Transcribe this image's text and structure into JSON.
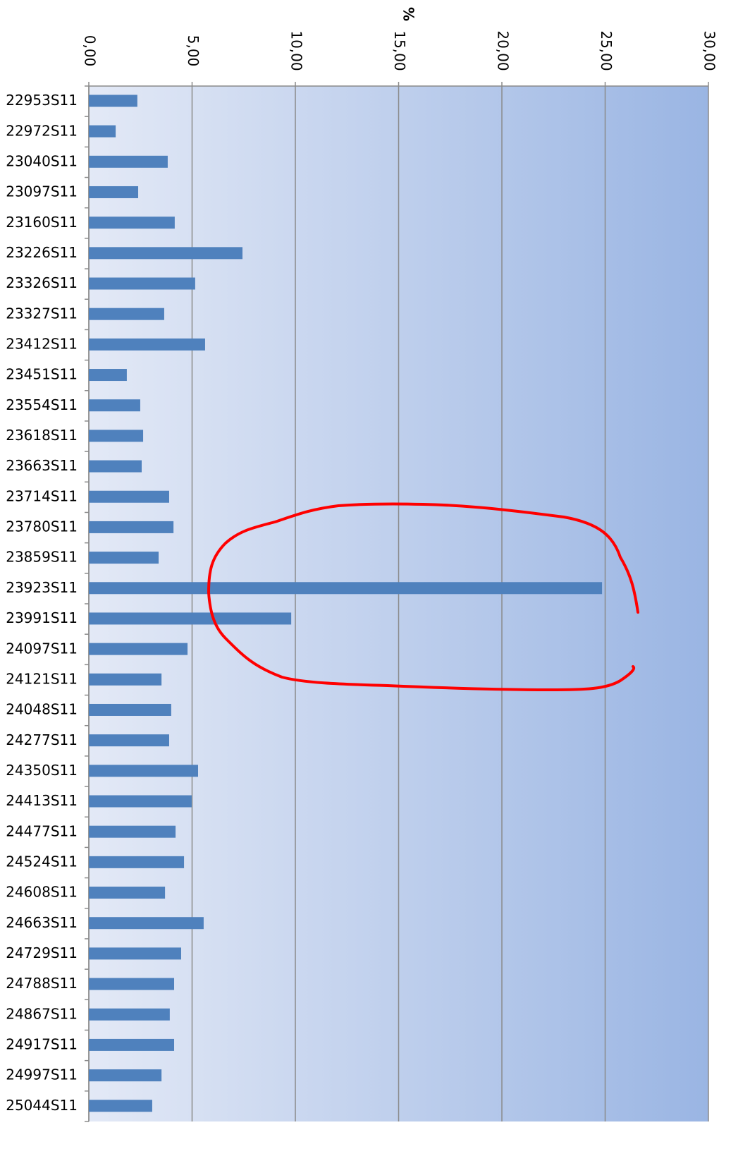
{
  "chart_data": {
    "type": "bar",
    "orientation": "horizontal",
    "x_label": "%",
    "categories": [
      "22953S11",
      "22972S11",
      "23040S11",
      "23097S11",
      "23160S11",
      "23226S11",
      "23326S11",
      "23327S11",
      "23412S11",
      "23451S11",
      "23554S11",
      "23618S11",
      "23663S11",
      "23714S11",
      "23780S11",
      "23859S11",
      "23923S11",
      "23991S11",
      "24097S11",
      "24121S11",
      "24048S11",
      "24277S11",
      "24350S11",
      "24413S11",
      "24477S11",
      "24524S11",
      "24608S11",
      "24663S11",
      "24729S11",
      "24788S11",
      "24867S11",
      "24917S11",
      "24997S11",
      "25044S11"
    ],
    "values": [
      2.35,
      1.3,
      3.82,
      2.39,
      4.16,
      7.44,
      5.15,
      3.65,
      5.63,
      1.84,
      2.49,
      2.63,
      2.56,
      3.89,
      4.1,
      3.38,
      24.85,
      9.8,
      4.78,
      3.52,
      3.99,
      3.89,
      5.29,
      4.98,
      4.2,
      4.61,
      3.69,
      5.56,
      4.47,
      4.13,
      3.92,
      4.13,
      3.52,
      3.07
    ],
    "color": "#4f81bd",
    "xlim": [
      0,
      30
    ],
    "xticks": [
      {
        "value": 0,
        "label": "0,00"
      },
      {
        "value": 5,
        "label": "5,00"
      },
      {
        "value": 10,
        "label": "10,00"
      },
      {
        "value": 15,
        "label": "15,00"
      },
      {
        "value": 20,
        "label": "20,00"
      },
      {
        "value": 25,
        "label": "25,00"
      },
      {
        "value": 30,
        "label": "30,00"
      }
    ],
    "grid": true
  }
}
